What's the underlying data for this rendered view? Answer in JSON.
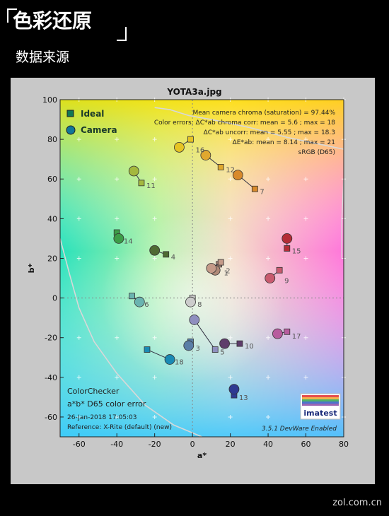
{
  "header": {
    "title": "色彩还原",
    "subtitle": "数据来源"
  },
  "watermark": "zol.com.cn",
  "colors": {
    "background": "#000000",
    "panel": "#c8c8c8",
    "ideal_marker": "#117755",
    "camera_marker": "#117799"
  },
  "chart_data": {
    "type": "scatter",
    "title": "YOTA3a.jpg",
    "xlabel": "a*",
    "ylabel": "b*",
    "xlim": [
      -70,
      80
    ],
    "ylim": [
      -70,
      100
    ],
    "xticks": [
      -60,
      -40,
      -20,
      0,
      20,
      40,
      60,
      80
    ],
    "yticks": [
      -60,
      -40,
      -20,
      0,
      20,
      40,
      60,
      80,
      100
    ],
    "grid": true,
    "legend": {
      "position": "top-left",
      "entries": [
        "Ideal",
        "Camera"
      ]
    },
    "stats": [
      "Mean camera chroma (saturation) = 97.44%",
      "Color errors: ΔC*ab chroma corr:  mean = 5.6 ;  max = 18",
      "ΔC*ab uncorr:  mean = 5.55 ;  max = 18.3",
      "ΔE*ab:  mean = 8.14 ;  max = 21",
      "sRGB (D65)"
    ],
    "annotation": [
      "ColorChecker",
      "a*b* D65 color error",
      "26-Jan-2018 17:05:03",
      "Reference: X-Rite (default) (new)"
    ],
    "version": "3.5.1  DevWare Enabled",
    "logo": "imatest",
    "patches": [
      {
        "id": "1",
        "ideal": [
          14,
          17
        ],
        "camera": [
          12,
          14
        ],
        "color": "#b08a78"
      },
      {
        "id": "2",
        "ideal": [
          15,
          18
        ],
        "camera": [
          10,
          15
        ],
        "color": "#c49a88"
      },
      {
        "id": "3",
        "ideal": [
          -1,
          -22
        ],
        "camera": [
          -2,
          -24
        ],
        "color": "#5a7ea6"
      },
      {
        "id": "4",
        "ideal": [
          -14,
          22
        ],
        "camera": [
          -20,
          24
        ],
        "color": "#4f6b33"
      },
      {
        "id": "5",
        "ideal": [
          12,
          -26
        ],
        "camera": [
          1,
          -11
        ],
        "color": "#8f8fbf"
      },
      {
        "id": "6",
        "ideal": [
          -32,
          1
        ],
        "camera": [
          -28,
          -2
        ],
        "color": "#6ab4b0"
      },
      {
        "id": "7",
        "ideal": [
          33,
          55
        ],
        "camera": [
          24,
          62
        ],
        "color": "#d88a2c"
      },
      {
        "id": "8",
        "ideal": [
          0,
          0
        ],
        "camera": [
          -1,
          -2
        ],
        "color": "#cccccc"
      },
      {
        "id": "9",
        "ideal": [
          46,
          14
        ],
        "camera": [
          41,
          10
        ],
        "color": "#c85a6e"
      },
      {
        "id": "10",
        "ideal": [
          25,
          -23
        ],
        "camera": [
          17,
          -23
        ],
        "color": "#5e3c6a"
      },
      {
        "id": "11",
        "ideal": [
          -27,
          58
        ],
        "camera": [
          -31,
          64
        ],
        "color": "#a4b83e"
      },
      {
        "id": "12",
        "ideal": [
          15,
          66
        ],
        "camera": [
          7,
          72
        ],
        "color": "#e0a82e"
      },
      {
        "id": "13",
        "ideal": [
          22,
          -49
        ],
        "camera": [
          22,
          -46
        ],
        "color": "#2e3a92"
      },
      {
        "id": "14",
        "ideal": [
          -40,
          33
        ],
        "camera": [
          -39,
          30
        ],
        "color": "#3c9c48"
      },
      {
        "id": "15",
        "ideal": [
          50,
          25
        ],
        "camera": [
          50,
          30
        ],
        "color": "#b42c36"
      },
      {
        "id": "16",
        "ideal": [
          -1,
          80
        ],
        "camera": [
          -7,
          76
        ],
        "color": "#e6c424"
      },
      {
        "id": "17",
        "ideal": [
          50,
          -17
        ],
        "camera": [
          45,
          -18
        ],
        "color": "#b85c9e"
      },
      {
        "id": "18",
        "ideal": [
          -24,
          -26
        ],
        "camera": [
          -12,
          -31
        ],
        "color": "#1a8ab4"
      }
    ]
  }
}
